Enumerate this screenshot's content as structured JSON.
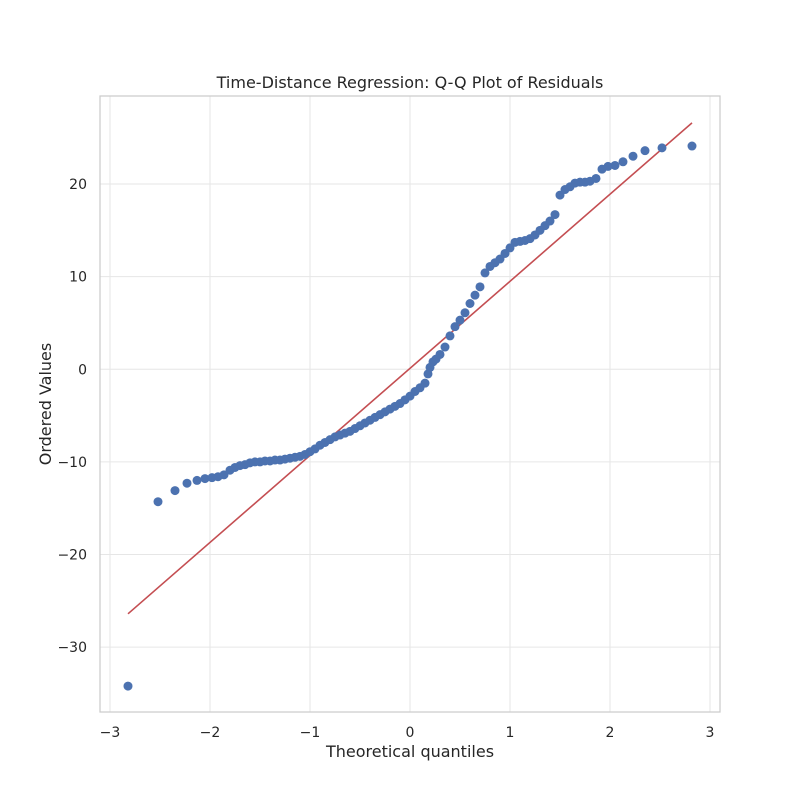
{
  "chart_data": {
    "type": "scatter",
    "title": "Time-Distance Regression: Q-Q Plot of Residuals",
    "xlabel": "Theoretical quantiles",
    "ylabel": "Ordered Values",
    "xlim": [
      -3.1,
      3.1
    ],
    "ylim": [
      -37,
      29.5
    ],
    "xticks": [
      -3,
      -2,
      -1,
      0,
      1,
      2,
      3
    ],
    "xtick_labels": [
      "−3",
      "−2",
      "−1",
      "0",
      "1",
      "2",
      "3"
    ],
    "yticks": [
      -30,
      -20,
      -10,
      0,
      10,
      20
    ],
    "ytick_labels": [
      "−30",
      "−20",
      "−10",
      "0",
      "10",
      "20"
    ],
    "grid": true,
    "colors": {
      "points": "#4c72b0",
      "fit_line": "#c44e52",
      "grid": "#e6e6e6",
      "frame": "#cccccc"
    },
    "series": [
      {
        "kind": "points",
        "x": [
          -2.82,
          -2.52,
          -2.35,
          -2.23,
          -2.13,
          -2.05,
          -1.98,
          -1.92,
          -1.86,
          -1.8,
          -1.75,
          -1.7,
          -1.65,
          -1.6,
          -1.55,
          -1.5,
          -1.45,
          -1.4,
          -1.35,
          -1.3,
          -1.25,
          -1.2,
          -1.15,
          -1.1,
          -1.05,
          -1.0,
          -0.95,
          -0.9,
          -0.85,
          -0.8,
          -0.75,
          -0.7,
          -0.65,
          -0.6,
          -0.55,
          -0.5,
          -0.45,
          -0.4,
          -0.35,
          -0.3,
          -0.25,
          -0.2,
          -0.15,
          -0.1,
          -0.05,
          0.0,
          0.05,
          0.1,
          0.15,
          0.18,
          0.2,
          0.23,
          0.26,
          0.3,
          0.35,
          0.4,
          0.45,
          0.5,
          0.55,
          0.6,
          0.65,
          0.7,
          0.75,
          0.8,
          0.85,
          0.9,
          0.95,
          1.0,
          1.05,
          1.1,
          1.15,
          1.2,
          1.25,
          1.3,
          1.35,
          1.4,
          1.45,
          1.5,
          1.55,
          1.6,
          1.65,
          1.7,
          1.75,
          1.8,
          1.86,
          1.92,
          1.98,
          2.05,
          2.13,
          2.23,
          2.35,
          2.52,
          2.82
        ],
        "y": [
          -34.2,
          -14.3,
          -13.1,
          -12.3,
          -12.0,
          -11.8,
          -11.7,
          -11.6,
          -11.4,
          -10.9,
          -10.6,
          -10.4,
          -10.3,
          -10.1,
          -10.0,
          -10.0,
          -9.9,
          -9.9,
          -9.8,
          -9.8,
          -9.7,
          -9.6,
          -9.5,
          -9.4,
          -9.2,
          -8.9,
          -8.6,
          -8.2,
          -7.9,
          -7.6,
          -7.3,
          -7.1,
          -6.9,
          -6.7,
          -6.4,
          -6.1,
          -5.8,
          -5.5,
          -5.2,
          -4.9,
          -4.6,
          -4.3,
          -4.0,
          -3.7,
          -3.3,
          -2.9,
          -2.4,
          -2.0,
          -1.5,
          -0.5,
          0.2,
          0.8,
          1.1,
          1.6,
          2.4,
          3.6,
          4.6,
          5.3,
          6.1,
          7.1,
          8.0,
          8.9,
          10.4,
          11.1,
          11.5,
          11.9,
          12.5,
          13.1,
          13.7,
          13.8,
          13.9,
          14.1,
          14.5,
          15.0,
          15.5,
          16.0,
          16.7,
          18.8,
          19.4,
          19.7,
          20.1,
          20.2,
          20.2,
          20.3,
          20.6,
          21.6,
          21.9,
          22.0,
          22.4,
          23.0,
          23.6,
          23.9,
          24.1
        ]
      },
      {
        "kind": "line",
        "x": [
          -2.82,
          2.82
        ],
        "y": [
          -26.4,
          26.6
        ]
      }
    ]
  }
}
